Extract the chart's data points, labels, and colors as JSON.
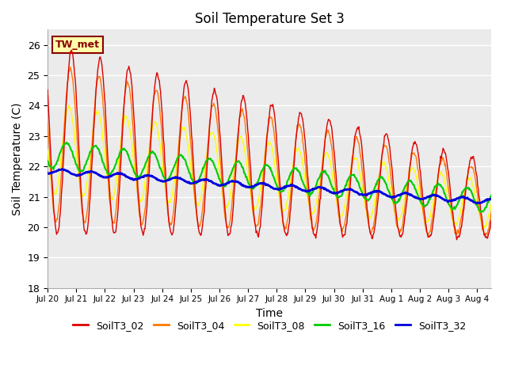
{
  "title": "Soil Temperature Set 3",
  "xlabel": "Time",
  "ylabel": "Soil Temperature (C)",
  "ylim": [
    18.0,
    26.5
  ],
  "yticks": [
    18.0,
    19.0,
    20.0,
    21.0,
    22.0,
    23.0,
    24.0,
    25.0,
    26.0
  ],
  "background_color": "#ebebeb",
  "series_colors": {
    "SoilT3_02": "#dd0000",
    "SoilT3_04": "#ff7700",
    "SoilT3_08": "#ffff00",
    "SoilT3_16": "#00cc00",
    "SoilT3_32": "#0000dd"
  },
  "annotation_text": "TW_met",
  "annotation_color": "#880000",
  "annotation_bg": "#ffffaa",
  "n_days": 15.5,
  "points_per_day": 48,
  "tick_labels": [
    "Jul 20",
    "Jul 21",
    "Jul 22",
    "Jul 23",
    "Jul 24",
    "Jul 25",
    "Jul 26",
    "Jul 27",
    "Jul 28",
    "Jul 29",
    "Jul 30",
    "Jul 31",
    "Aug 1",
    "Aug 2",
    "Aug 3",
    "Aug 4"
  ]
}
